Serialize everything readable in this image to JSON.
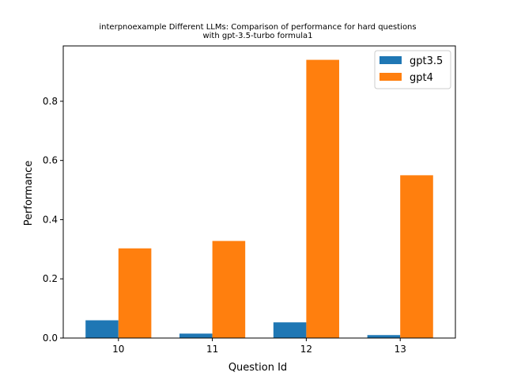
{
  "chart_data": {
    "type": "bar",
    "title_line1": "interpnoexample Different LLMs: Comparison of performance for hard questions",
    "title_line2": "with gpt-3.5-turbo formula1",
    "xlabel": "Question Id",
    "ylabel": "Performance",
    "categories": [
      "10",
      "11",
      "12",
      "13"
    ],
    "series": [
      {
        "name": "gpt3.5",
        "color": "#1f77b4",
        "values": [
          0.06,
          0.015,
          0.053,
          0.01
        ]
      },
      {
        "name": "gpt4",
        "color": "#ff7f0e",
        "values": [
          0.303,
          0.328,
          0.94,
          0.55
        ]
      }
    ],
    "ylim": [
      0,
      0.987
    ],
    "yticks": [
      0.0,
      0.2,
      0.4,
      0.6,
      0.8
    ],
    "ytick_labels": [
      "0.0",
      "0.2",
      "0.4",
      "0.6",
      "0.8"
    ],
    "grid": false,
    "legend_position": "top-right"
  }
}
